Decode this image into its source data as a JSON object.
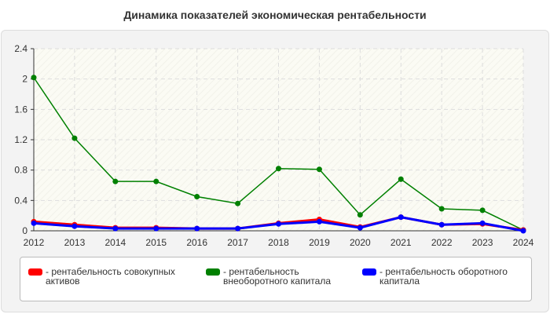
{
  "chart_data": {
    "type": "line",
    "title": "Динамика показателей экономическая рентабельности",
    "xlabel": "",
    "ylabel": "",
    "x": [
      "2012",
      "2013",
      "2014",
      "2015",
      "2016",
      "2017",
      "2018",
      "2019",
      "2020",
      "2021",
      "2022",
      "2023",
      "2024"
    ],
    "ylim": [
      0,
      2.4
    ],
    "yticks": [
      "0",
      "0.4",
      "0.8",
      "1.2",
      "1.6",
      "2",
      "2.4"
    ],
    "grid": true,
    "legend_placement": "bottom",
    "series": [
      {
        "name": "- рентабельность совокупных активов",
        "color": "#ff0000",
        "values": [
          0.12,
          0.08,
          0.04,
          0.04,
          0.03,
          0.03,
          0.1,
          0.15,
          0.05,
          0.18,
          0.08,
          0.09,
          0.01
        ]
      },
      {
        "name": "- рентабельность внеоборотного капитала",
        "color": "#008000",
        "values": [
          2.02,
          1.22,
          0.65,
          0.65,
          0.45,
          0.36,
          0.82,
          0.81,
          0.21,
          0.68,
          0.29,
          0.27,
          0.01
        ]
      },
      {
        "name": "- рентабельность оборотного капитала",
        "color": "#0000ff",
        "values": [
          0.1,
          0.06,
          0.03,
          0.03,
          0.03,
          0.03,
          0.09,
          0.12,
          0.04,
          0.18,
          0.08,
          0.1,
          0.0
        ]
      }
    ]
  }
}
